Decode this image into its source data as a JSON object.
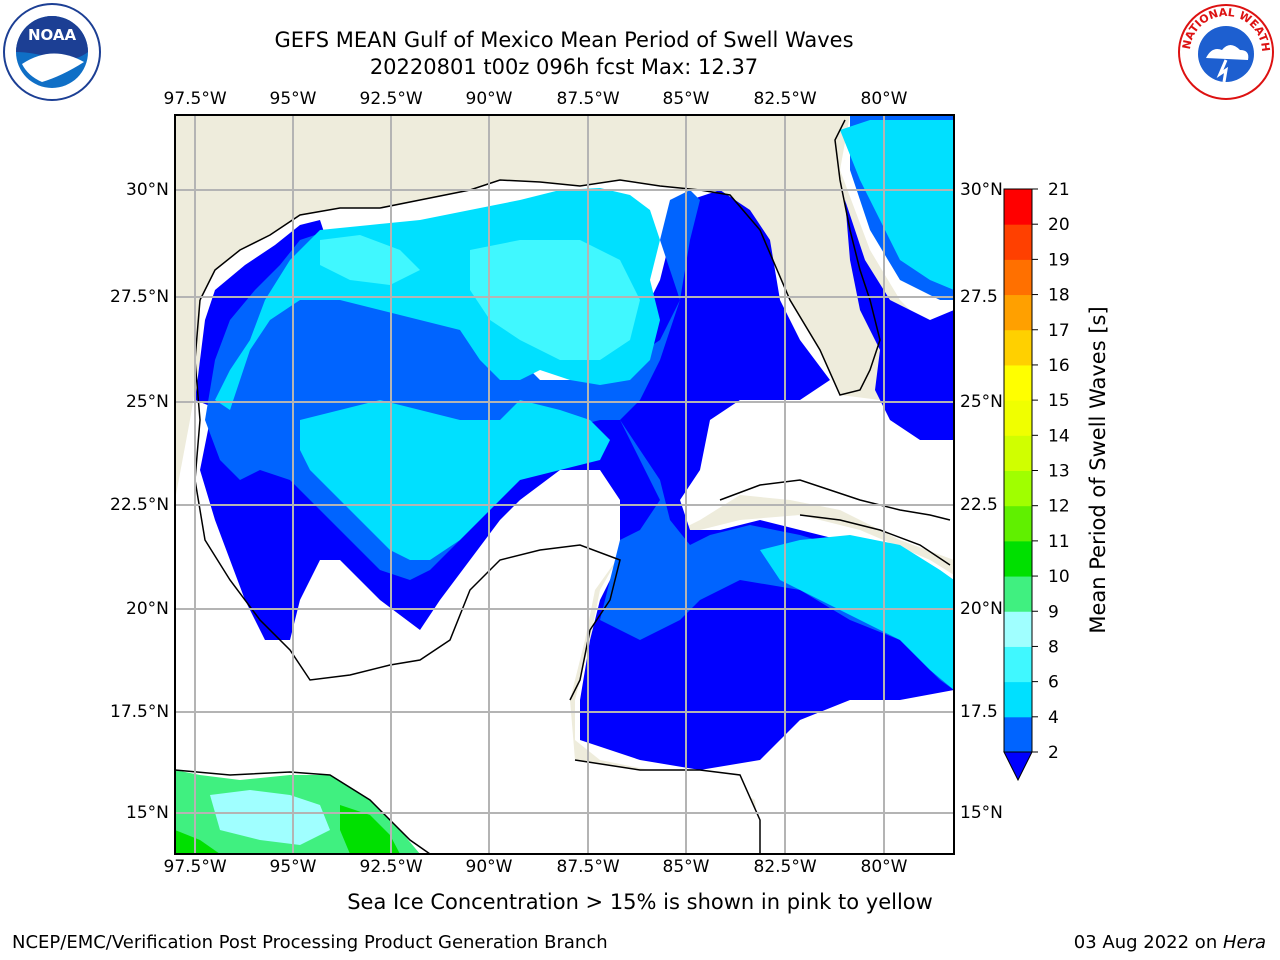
{
  "header": {
    "title_line1": "GEFS MEAN Gulf of Mexico Mean Period of Swell Waves",
    "title_line2": "20220801 t00z 096h fcst   Max: 12.37"
  },
  "map": {
    "lon_labels": [
      "97.5°W",
      "95°W",
      "92.5°W",
      "90°W",
      "87.5°W",
      "85°W",
      "82.5°W",
      "80°W"
    ],
    "lat_labels": [
      "30°N",
      "27.5°N",
      "25°N",
      "22.5°N",
      "20°N",
      "17.5°N",
      "15°N"
    ],
    "lat_labels_right": [
      "30°N",
      "27.5",
      "25°N",
      "22.5",
      "20°N",
      "17.5",
      "15°N"
    ],
    "colors": {
      "land": "#eeecdc",
      "ocean_none": "#ffffff",
      "grid": "#b4b4b4"
    }
  },
  "colorbar": {
    "title": "Mean Period of Swell Waves [s]",
    "tick_labels": [
      "2",
      "4",
      "6",
      "8",
      "9",
      "10",
      "11",
      "12",
      "13",
      "14",
      "15",
      "16",
      "17",
      "18",
      "19",
      "20",
      "21"
    ],
    "colors": [
      "#0000ff",
      "#0064ff",
      "#00e0ff",
      "#40f8ff",
      "#a0ffff",
      "#40f080",
      "#00e000",
      "#60f000",
      "#a0ff00",
      "#d0ff00",
      "#f0ff00",
      "#ffff00",
      "#ffd000",
      "#ffa000",
      "#ff7000",
      "#ff4000",
      "#ff0000"
    ]
  },
  "footer": {
    "note": "Sea Ice Concentration > 15% is shown in pink to yellow",
    "left": "NCEP/EMC/Verification Post Processing Product Generation Branch",
    "right_date": "03 Aug 2022 on ",
    "right_host": "Hera"
  },
  "logos": {
    "noaa": "NOAA",
    "nws": "NATIONAL WEATHER SERVICE"
  }
}
